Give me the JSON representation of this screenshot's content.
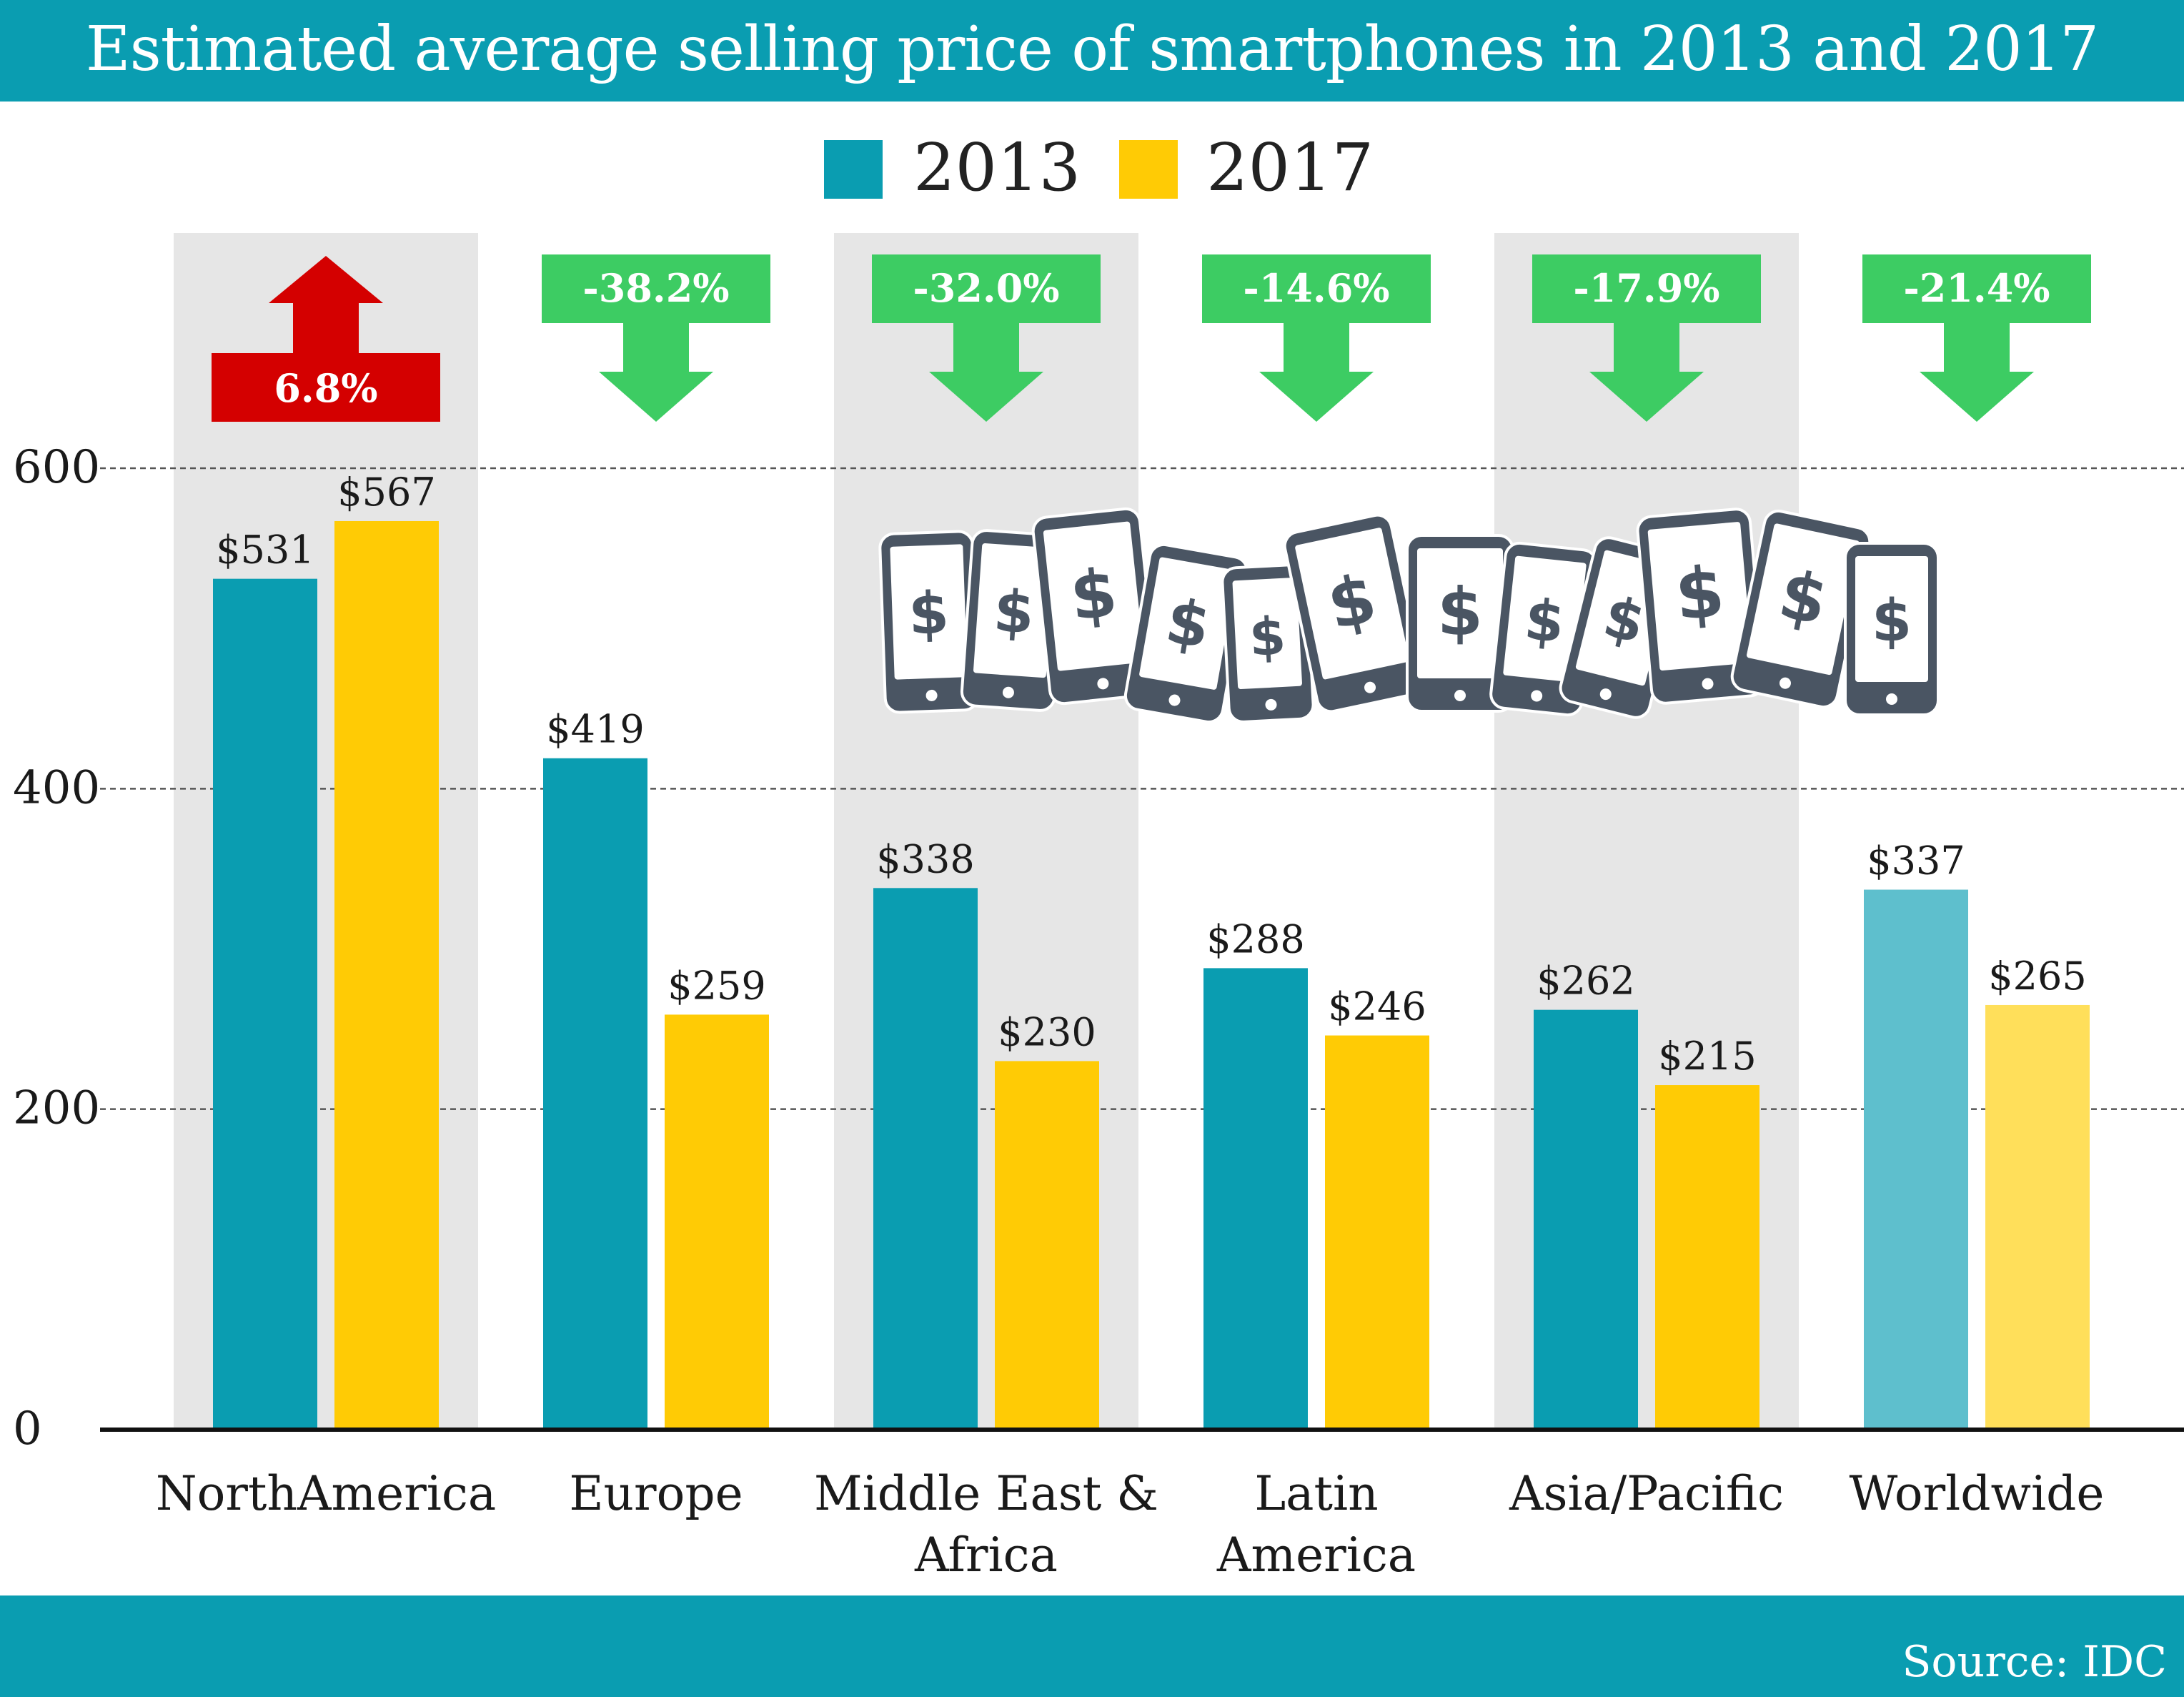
{
  "colors": {
    "header_bg": "#0a9db1",
    "series_2013": "#0a9db1",
    "series_2017": "#ffcb05",
    "worldwide_2013": "#5ebfcd",
    "worldwide_2017": "#ffdf5a",
    "increase": "#d40000",
    "decrease": "#3dcc63",
    "column_shade": "#e6e6e6",
    "phone_icon": "#4a5563"
  },
  "header": {
    "title": "Estimated average selling price of smartphones in 2013 and 2017"
  },
  "legend": {
    "items": [
      "2013",
      "2017"
    ]
  },
  "footer": {
    "source": "Source: IDC"
  },
  "illustration": {
    "icon": "smartphone-dollar-icon",
    "count": 12
  },
  "chart_data": {
    "type": "bar",
    "title": "Estimated average selling price of smartphones in 2013 and 2017",
    "categories": [
      [
        "NorthAmerica"
      ],
      [
        "Europe"
      ],
      [
        "Middle East &",
        "Africa"
      ],
      [
        "Latin",
        "America"
      ],
      [
        "Asia/Pacific"
      ],
      [
        "Worldwide"
      ]
    ],
    "series": [
      {
        "name": "2013",
        "values": [
          531,
          419,
          338,
          288,
          262,
          337
        ],
        "labels": [
          "$531",
          "$419",
          "$338",
          "$288",
          "$262",
          "$337"
        ]
      },
      {
        "name": "2017",
        "values": [
          567,
          259,
          230,
          246,
          215,
          265
        ],
        "labels": [
          "$567",
          "$259",
          "$230",
          "$246",
          "$215",
          "$265"
        ]
      }
    ],
    "changes": [
      {
        "text": "6.8%",
        "direction": "up"
      },
      {
        "text": "-38.2%",
        "direction": "down"
      },
      {
        "text": "-32.0%",
        "direction": "down"
      },
      {
        "text": "-14.6%",
        "direction": "down"
      },
      {
        "text": "-17.9%",
        "direction": "down"
      },
      {
        "text": "-21.4%",
        "direction": "down"
      }
    ],
    "yticks": [
      0,
      200,
      400,
      600
    ],
    "ylim": [
      0,
      600
    ],
    "grid": "dashed",
    "legend_position": "top-center",
    "shaded_columns": [
      0,
      2,
      4
    ]
  }
}
